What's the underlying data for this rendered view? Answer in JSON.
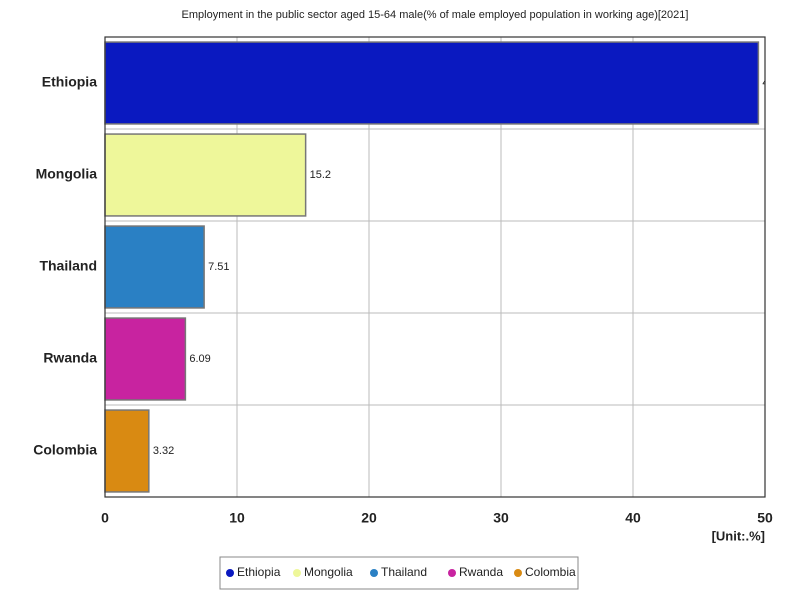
{
  "chart_data": {
    "type": "bar",
    "orientation": "horizontal",
    "title": "Employment in the public sector aged 15-64 male(% of male employed population in working age)[2021]",
    "unit": "[Unit:.%]",
    "categories": [
      "Ethiopia",
      "Mongolia",
      "Thailand",
      "Rwanda",
      "Colombia"
    ],
    "values": [
      49.5,
      15.2,
      7.51,
      6.09,
      3.32
    ],
    "colors": [
      "#0a19c0",
      "#eef79a",
      "#2a80c4",
      "#c823a0",
      "#d98a12"
    ],
    "xlim": [
      0,
      50
    ],
    "xticks": [
      0,
      10,
      20,
      30,
      40,
      50
    ],
    "grid": true,
    "legend": "bottom"
  }
}
